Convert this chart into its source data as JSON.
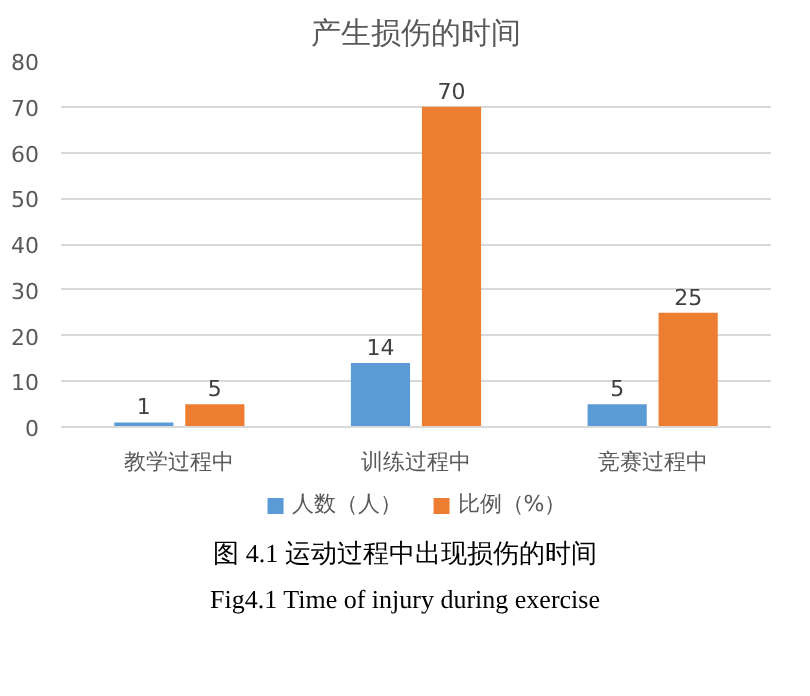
{
  "chart_data": {
    "type": "bar",
    "title": "产生损伤的时间",
    "categories": [
      "教学过程中",
      "训练过程中",
      "竞赛过程中"
    ],
    "series": [
      {
        "name": "人数（人）",
        "color": "#5b9bd5",
        "values": [
          1,
          14,
          5
        ]
      },
      {
        "name": "比例（%）",
        "color": "#ed7d31",
        "values": [
          5,
          70,
          25
        ]
      }
    ],
    "ylim": [
      0,
      80
    ],
    "yticks": [
      0,
      10,
      20,
      30,
      40,
      50,
      60,
      70,
      80
    ],
    "grid": "y",
    "legend": "bottom",
    "data_labels": true,
    "annotations": [
      "图 4.1 运动过程中出现损伤的时间",
      "Fig4.1 Time of injury during exercise"
    ]
  }
}
